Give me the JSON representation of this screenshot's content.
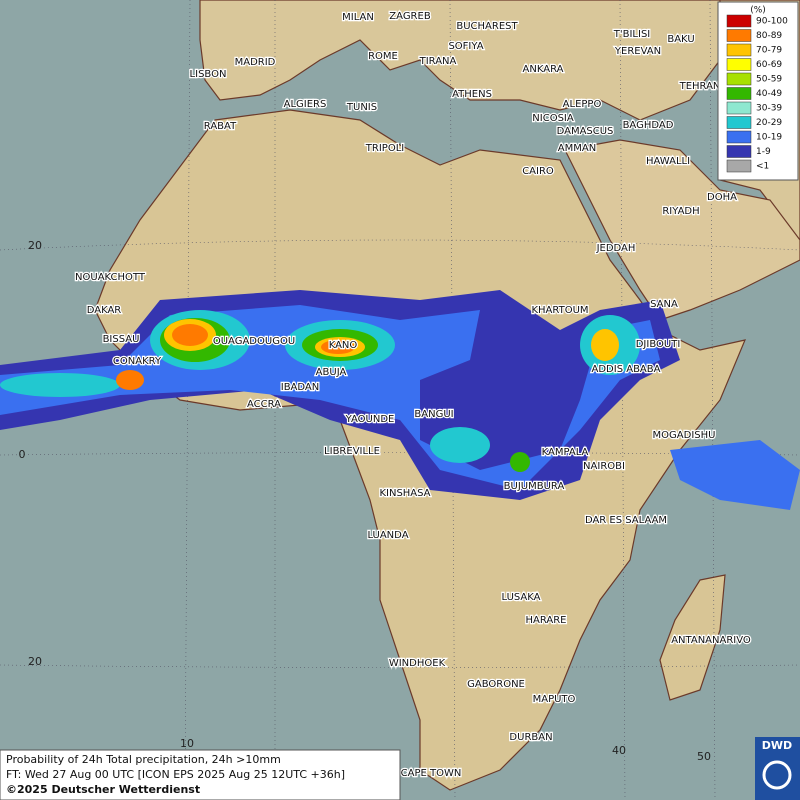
{
  "legend": {
    "title": "(%)",
    "items": [
      {
        "label": "90-100",
        "color": "#cc0000"
      },
      {
        "label": "80-89",
        "color": "#ff7a00"
      },
      {
        "label": "70-79",
        "color": "#ffc400"
      },
      {
        "label": "60-69",
        "color": "#ffff00"
      },
      {
        "label": "50-59",
        "color": "#a8e000"
      },
      {
        "label": "40-49",
        "color": "#33b800"
      },
      {
        "label": "30-39",
        "color": "#8ee8d0"
      },
      {
        "label": "20-29",
        "color": "#22c8d0"
      },
      {
        "label": "10-19",
        "color": "#3a70f0"
      },
      {
        "label": "1-9",
        "color": "#3535b0"
      },
      {
        "label": "<1",
        "color": "#a8a8a8"
      }
    ]
  },
  "cities": [
    "MILAN",
    "ZAGREB",
    "BUCHAREST",
    "ROME",
    "SOFIYA",
    "TIRANA",
    "ANKARA",
    "T'BILISI",
    "BAKU",
    "YEREVAN",
    "TEHRAN",
    "MADRID",
    "LISBON",
    "ALGIERS",
    "TUNIS",
    "ATHENS",
    "ALEPPO",
    "RABAT",
    "NICOSIA",
    "BAGHDAD",
    "DAMASCUS",
    "TRIPOLI",
    "AMMAN",
    "HAWALLI",
    "CAIRO",
    "DOHA",
    "RIYADH",
    "JEDDAH",
    "NOUAKCHOTT",
    "DAKAR",
    "SANA",
    "KHARTOUM",
    "BISSAU",
    "OUAGADOUGOU",
    "KANO",
    "DJIBOUTI",
    "CONAKRY",
    "ABUJA",
    "ADDIS ABABA",
    "IBADAN",
    "ACCRA",
    "BANGUI",
    "YAOUNDE",
    "MOGADISHU",
    "LIBREVILLE",
    "KAMPALA",
    "NAIROBI",
    "BUJUMBURA",
    "KINSHASA",
    "DAR ES SALAAM",
    "LUANDA",
    "LUSAKA",
    "HARARE",
    "ANTANANARIVO",
    "WINDHOEK",
    "GABORONE",
    "MAPUTO",
    "DURBAN",
    "CAPE TOWN"
  ],
  "grid_labels": [
    "20",
    "0",
    "20",
    "10",
    "40",
    "50"
  ],
  "caption": [
    "Probability of 24h Total precipitation, 24h >10mm",
    "FT: Wed 27 Aug 00 UTC [ICON EPS 2025 Aug 25 12UTC +36h]",
    "©2025 Deutscher Wetterdienst"
  ],
  "logo": "DWD"
}
